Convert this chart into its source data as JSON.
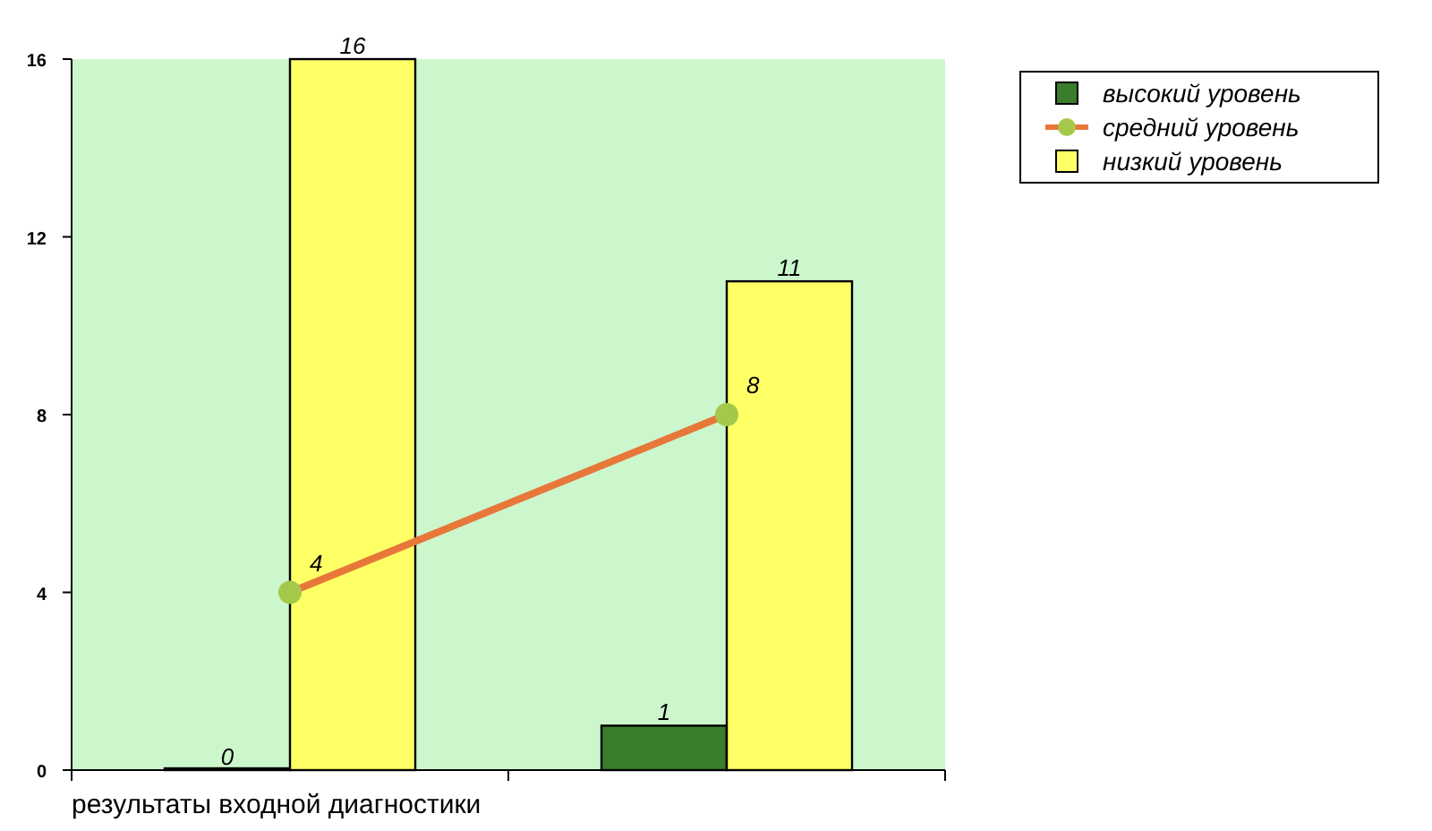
{
  "chart_data": {
    "type": "bar",
    "xlabel": "результаты входной диагностики",
    "categories": [
      null,
      null
    ],
    "series": [
      {
        "name": "высокий уровень",
        "color": "#3a7d2c",
        "values": [
          0,
          1
        ]
      },
      {
        "name": "средний уровень",
        "type": "line",
        "color": "#e8773a",
        "values": [
          4,
          8
        ]
      },
      {
        "name": "низкий уровень",
        "color": "#ffff66",
        "values": [
          16,
          11
        ]
      }
    ],
    "ylim": [
      0,
      16
    ],
    "yticks": [
      0,
      4,
      8,
      12,
      16
    ],
    "grid": false,
    "legend": "top right",
    "marker": "circle",
    "data_labels": true
  }
}
